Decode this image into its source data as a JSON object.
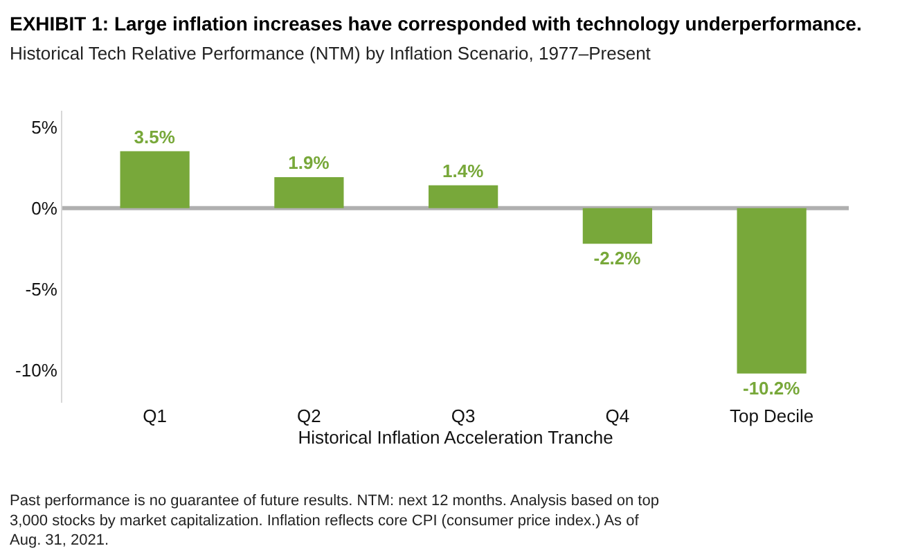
{
  "chart_data": {
    "type": "bar",
    "title": "EXHIBIT 1: Large inflation increases have corresponded with technology underperformance.",
    "subtitle": "Historical Tech Relative Performance (NTM) by Inflation Scenario, 1977–Present",
    "xlabel": "Historical Inflation Acceleration Tranche",
    "categories": [
      "Q1",
      "Q2",
      "Q3",
      "Q4",
      "Top Decile"
    ],
    "values": [
      3.5,
      1.9,
      1.4,
      -2.2,
      -10.2
    ],
    "value_labels": [
      "3.5%",
      "1.9%",
      "1.4%",
      "-2.2%",
      "-10.2%"
    ],
    "color": "#78a83a",
    "ylim": [
      -12,
      6
    ],
    "ref_lines": [
      {
        "axis": "y",
        "value": 0,
        "color": "#b0b0b0"
      }
    ],
    "yticks": [
      {
        "value": 5,
        "label": "5%"
      },
      {
        "value": 0,
        "label": "0%"
      },
      {
        "value": -5,
        "label": "-5%"
      },
      {
        "value": -10,
        "label": "-10%"
      }
    ],
    "grid": false,
    "legend": false,
    "annotations": [
      "Past performance is no guarantee of future results. NTM: next 12 months. Analysis based on top 3,000 stocks by market capitalization. Inflation reflects core CPI (consumer price index.) As of Aug. 31, 2021."
    ]
  }
}
